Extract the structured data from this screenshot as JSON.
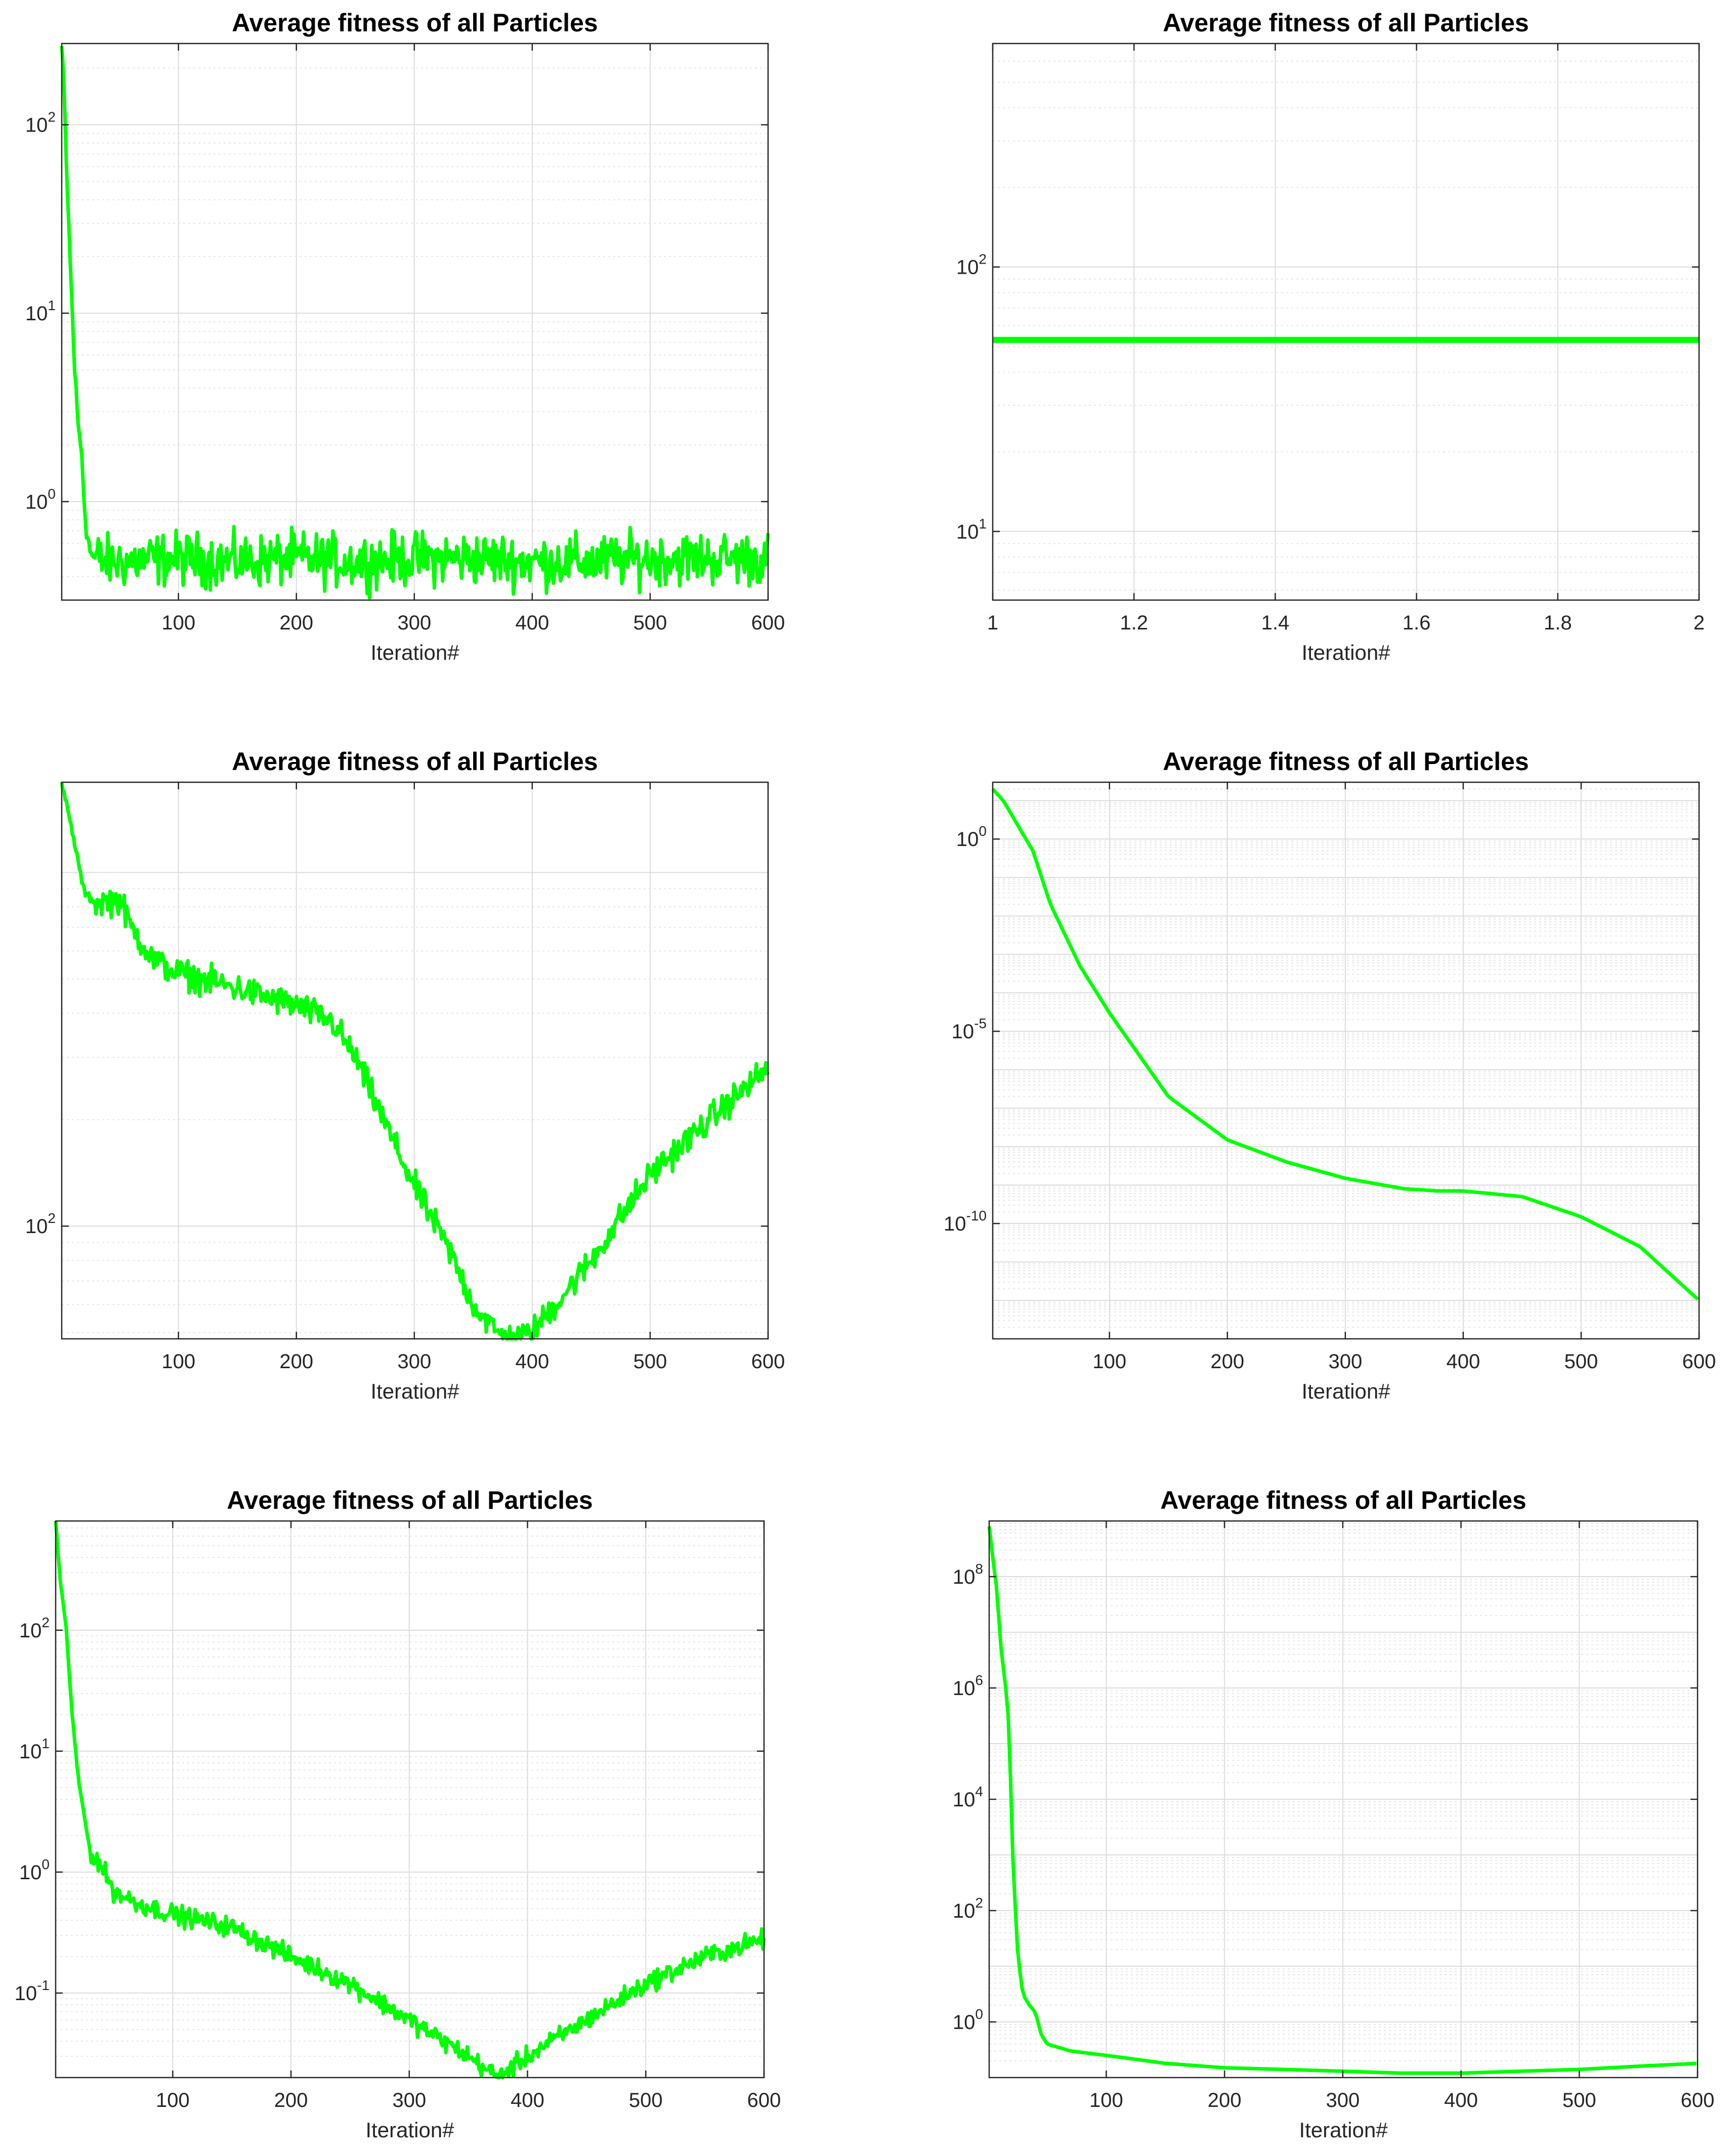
{
  "chart_data": [
    {
      "type": "line",
      "title": "Average fitness of all Particles",
      "xlabel": "Iteration#",
      "ylabel": "",
      "xlim": [
        1,
        600
      ],
      "ylim": [
        0.3,
        270
      ],
      "yscale": "log",
      "grid": true,
      "line_color": "#00ff00",
      "xticks": [
        100,
        200,
        300,
        400,
        500,
        600
      ],
      "yticks": [
        1,
        10,
        100
      ],
      "series": [
        {
          "x": [
            1,
            3,
            5,
            8,
            10,
            12,
            15,
            18,
            20,
            22,
            25,
            28,
            30,
            40,
            50,
            100,
            150,
            200,
            250,
            300,
            350,
            400,
            450,
            500,
            550,
            600
          ],
          "y": [
            260,
            150,
            60,
            20,
            10,
            5,
            2.5,
            1.8,
            1.0,
            0.7,
            0.55,
            0.5,
            0.5,
            0.48,
            0.48,
            0.5,
            0.48,
            0.5,
            0.48,
            0.5,
            0.5,
            0.48,
            0.48,
            0.5,
            0.5,
            0.5
          ],
          "noise": 0.12
        }
      ]
    },
    {
      "type": "line",
      "title": "Average fitness of all Particles",
      "xlabel": "Iteration#",
      "ylabel": "",
      "xlim": [
        1,
        2
      ],
      "ylim": [
        5.5,
        700
      ],
      "yscale": "log",
      "grid": true,
      "line_color": "#00ff00",
      "xticks": [
        1,
        1.2,
        1.4,
        1.6,
        1.8,
        2
      ],
      "yticks": [
        10,
        100
      ],
      "series": [
        {
          "x": [
            1,
            2
          ],
          "y": [
            53,
            53
          ],
          "noise": 0
        }
      ]
    },
    {
      "type": "line",
      "title": "Average fitness of all Particles",
      "xlabel": "Iteration#",
      "ylabel": "",
      "xlim": [
        1,
        600
      ],
      "ylim": [
        48,
        1800
      ],
      "yscale": "log",
      "grid": true,
      "line_color": "#00ff00",
      "xticks": [
        100,
        200,
        300,
        400,
        500,
        600
      ],
      "yticks": [
        100
      ],
      "series": [
        {
          "x": [
            1,
            10,
            20,
            30,
            50,
            60,
            80,
            100,
            150,
            200,
            230,
            250,
            280,
            300,
            330,
            350,
            370,
            380,
            390,
            400,
            450,
            500,
            550,
            600
          ],
          "y": [
            1800,
            1300,
            880,
            820,
            840,
            700,
            560,
            520,
            470,
            420,
            380,
            300,
            180,
            130,
            85,
            60,
            50,
            48,
            48.5,
            50,
            80,
            140,
            200,
            280
          ],
          "noise": 0.035
        }
      ]
    },
    {
      "type": "line",
      "title": "Average fitness of all Particles",
      "xlabel": "Iteration#",
      "ylabel": "",
      "xlim": [
        1,
        600
      ],
      "ylim": [
        1e-13,
        30
      ],
      "yscale": "log",
      "grid": true,
      "line_color": "#00ff00",
      "xticks": [
        100,
        200,
        300,
        400,
        500,
        600
      ],
      "yticks": [
        1e-10,
        1e-05,
        1
      ],
      "series": [
        {
          "x": [
            1,
            10,
            20,
            35,
            50,
            75,
            100,
            150,
            200,
            250,
            300,
            350,
            380,
            400,
            450,
            500,
            550,
            600
          ],
          "y": [
            20,
            10,
            3,
            0.5,
            0.02,
            0.0005,
            3e-05,
            2e-07,
            1.5e-08,
            4e-09,
            1.5e-09,
            8e-10,
            7e-10,
            7e-10,
            5e-10,
            1.5e-10,
            2.5e-11,
            1e-12
          ],
          "noise": 0
        }
      ]
    },
    {
      "type": "line",
      "title": "Average fitness of all Particles",
      "xlabel": "Iteration#",
      "ylabel": "",
      "xlim": [
        1,
        600
      ],
      "ylim": [
        0.02,
        800
      ],
      "yscale": "log",
      "grid": true,
      "line_color": "#00ff00",
      "xticks": [
        100,
        200,
        300,
        400,
        500,
        600
      ],
      "yticks": [
        0.1,
        1,
        10,
        100
      ],
      "series": [
        {
          "x": [
            1,
            5,
            10,
            15,
            20,
            25,
            30,
            40,
            50,
            70,
            100,
            150,
            200,
            250,
            300,
            350,
            375,
            400,
            450,
            500,
            550,
            600
          ],
          "y": [
            800,
            250,
            100,
            20,
            6,
            3,
            1.5,
            1.1,
            0.7,
            0.55,
            0.45,
            0.35,
            0.2,
            0.12,
            0.06,
            0.03,
            0.02,
            0.03,
            0.06,
            0.12,
            0.2,
            0.28
          ],
          "noise": 0.07
        }
      ]
    },
    {
      "type": "line",
      "title": "Average fitness of all Particles",
      "xlabel": "Iteration#",
      "ylabel": "",
      "xlim": [
        1,
        600
      ],
      "ylim": [
        0.1,
        1000000000.0
      ],
      "yscale": "log",
      "grid": true,
      "line_color": "#00ff00",
      "xticks": [
        100,
        200,
        300,
        400,
        500,
        600
      ],
      "yticks": [
        1,
        100,
        10000,
        1000000,
        100000000
      ],
      "series": [
        {
          "x": [
            1,
            5,
            8,
            10,
            15,
            18,
            20,
            22,
            25,
            28,
            30,
            35,
            40,
            45,
            50,
            70,
            100,
            120,
            150,
            200,
            250,
            300,
            350,
            400,
            450,
            500,
            550,
            600
          ],
          "y": [
            800000000,
            150000000,
            50000000,
            8000000,
            1000000,
            200000,
            3000,
            300,
            20,
            5,
            3,
            2,
            1.5,
            0.6,
            0.4,
            0.3,
            0.25,
            0.22,
            0.18,
            0.15,
            0.14,
            0.13,
            0.12,
            0.12,
            0.13,
            0.14,
            0.16,
            0.18
          ],
          "noise": 0
        }
      ]
    }
  ]
}
